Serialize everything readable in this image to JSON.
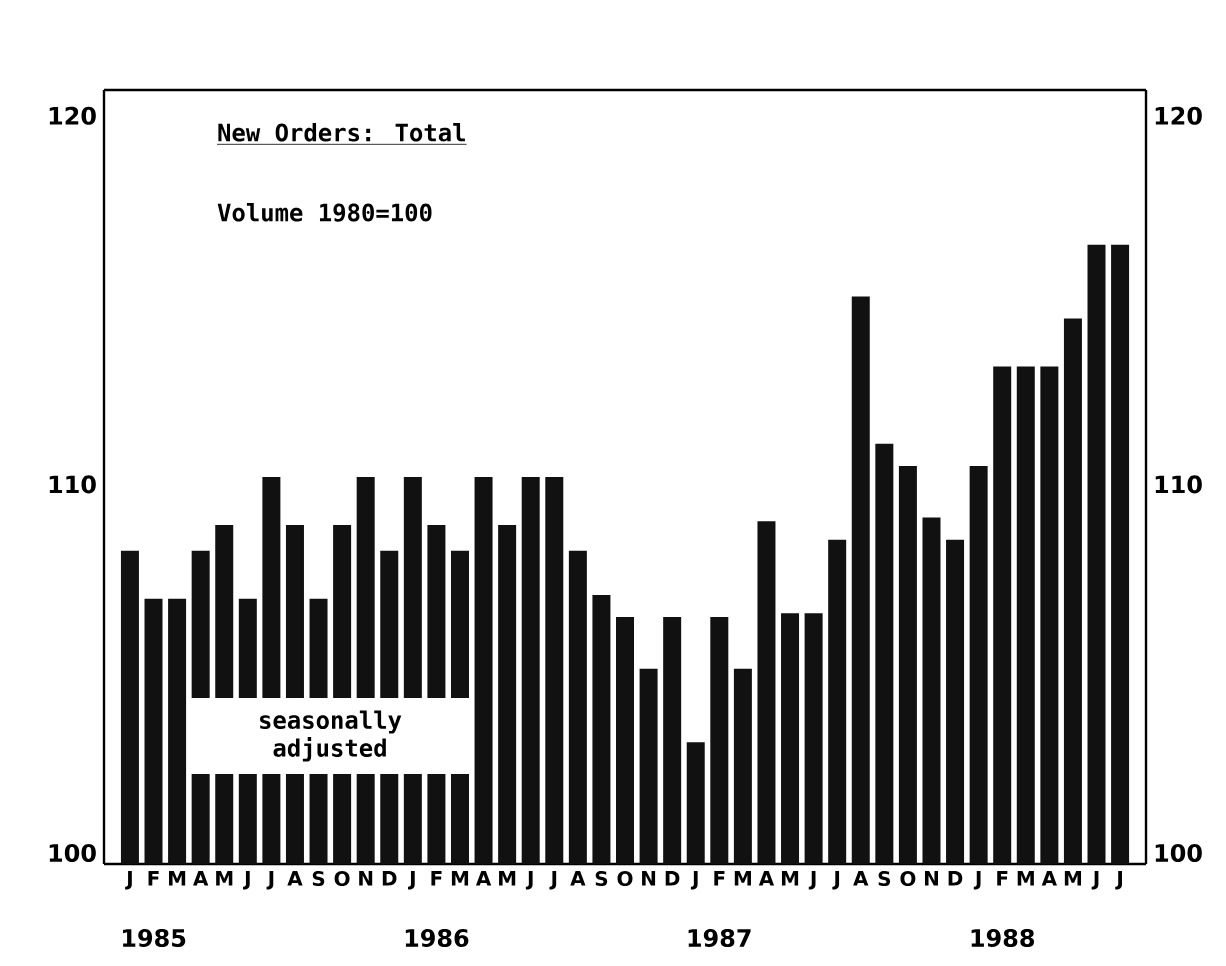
{
  "chart_data": {
    "type": "bar",
    "title": "New Orders: Total",
    "subtitle": "Volume 1980=100",
    "categories": [
      "J",
      "F",
      "M",
      "A",
      "M",
      "J",
      "J",
      "A",
      "S",
      "O",
      "N",
      "D",
      "J",
      "F",
      "M",
      "A",
      "M",
      "J",
      "J",
      "A",
      "S",
      "O",
      "N",
      "D",
      "J",
      "F",
      "M",
      "A",
      "M",
      "J",
      "J",
      "A",
      "S",
      "O",
      "N",
      "D",
      "J",
      "F",
      "M",
      "A",
      "M",
      "J",
      "J"
    ],
    "values": [
      108.2,
      106.9,
      106.9,
      108.2,
      108.9,
      106.9,
      110.2,
      108.9,
      106.9,
      108.9,
      110.2,
      108.2,
      110.2,
      108.9,
      108.2,
      110.2,
      108.9,
      110.2,
      110.2,
      108.2,
      107.0,
      106.4,
      105.0,
      106.4,
      103.0,
      106.4,
      105.0,
      109.0,
      106.5,
      106.5,
      108.5,
      115.1,
      111.1,
      110.5,
      109.1,
      108.5,
      110.5,
      113.2,
      113.2,
      113.2,
      114.5,
      116.5,
      116.5
    ],
    "color": "#111111",
    "ylim": [
      99.7,
      120.7
    ],
    "yticks": [
      100,
      110,
      120
    ],
    "y2lim": [
      99.7,
      120.7
    ],
    "y2ticks": [
      100,
      110,
      120
    ],
    "annotations": [
      "seasonally adjusted",
      "1985",
      "1986",
      "1987",
      "1988"
    ],
    "grid": false
  }
}
